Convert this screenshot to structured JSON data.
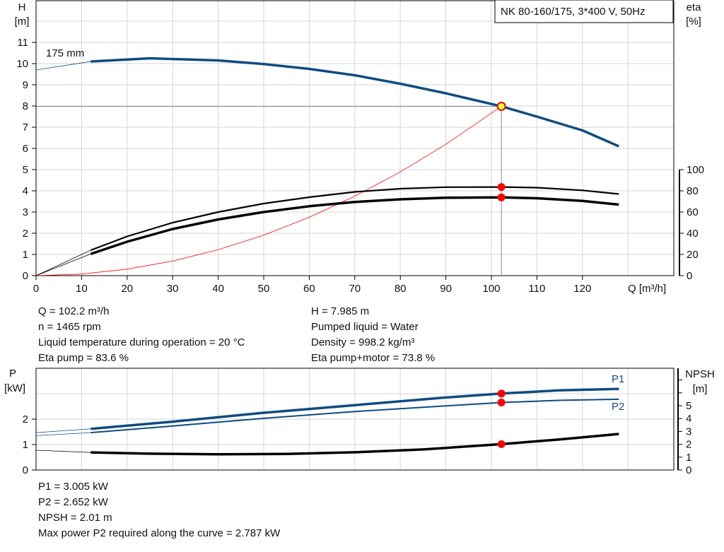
{
  "title": "NK 80-160/175, 3*400 V, 50Hz",
  "chart_data": [
    {
      "type": "line",
      "name": "pump-curve",
      "xlabel": "Q [m³/h]",
      "ylabel_left": "H\n[m]",
      "ylabel_right": "eta\n[%]",
      "xlim": [
        0,
        137.5
      ],
      "ylim_left": [
        0,
        13
      ],
      "ylim_right": [
        0,
        100
      ],
      "xticks": [
        0,
        10,
        20,
        30,
        40,
        50,
        60,
        70,
        80,
        90,
        100,
        110,
        120
      ],
      "yticks_left": [
        0,
        1,
        2,
        3,
        4,
        5,
        6,
        7,
        8,
        9,
        10,
        11
      ],
      "yticks_right": [
        0,
        20,
        40,
        60,
        80,
        100
      ],
      "grid": true,
      "curve_label": "175 mm",
      "series": [
        {
          "axis": "left",
          "color": "#0f4c81",
          "x": [
            0,
            12,
            25,
            40,
            50,
            60,
            70,
            80,
            90,
            102.2,
            110,
            120,
            128
          ],
          "y": [
            9.7,
            10.1,
            10.25,
            10.15,
            9.98,
            9.75,
            9.45,
            9.05,
            8.6,
            7.985,
            7.5,
            6.85,
            6.1
          ]
        },
        {
          "axis": "right",
          "color": "#000000",
          "x": [
            0,
            12,
            20,
            30,
            40,
            50,
            60,
            70,
            80,
            90,
            102.2,
            110,
            120,
            128
          ],
          "y": [
            0,
            24,
            37,
            50,
            60,
            68,
            74,
            79,
            82,
            83.5,
            83.6,
            83,
            80.5,
            77
          ]
        },
        {
          "axis": "right",
          "color": "#000000",
          "x": [
            0,
            12,
            20,
            30,
            40,
            50,
            60,
            70,
            80,
            90,
            102.2,
            110,
            120,
            128
          ],
          "y": [
            0,
            20.5,
            32,
            44,
            53,
            60,
            65.5,
            69.5,
            72,
            73.5,
            73.8,
            73,
            70.5,
            67
          ]
        },
        {
          "axis": "left",
          "color": "#ff0000",
          "type": "system-curve",
          "x": [
            0,
            10,
            20,
            30,
            40,
            50,
            60,
            70,
            80,
            90,
            102.2
          ],
          "y": [
            0,
            0.076,
            0.306,
            0.688,
            1.223,
            1.911,
            2.752,
            3.746,
            4.893,
            6.192,
            7.985
          ]
        }
      ],
      "duty_point": {
        "Q": 102.2,
        "H": 7.985,
        "eta_pump": 83.6,
        "eta_total": 73.8
      }
    },
    {
      "type": "line",
      "name": "power-npsh",
      "ylabel_left": "P\n[kW]",
      "ylabel_right": "NPSH\n[m]",
      "xlim": [
        0,
        137.5
      ],
      "ylim_left": [
        0,
        4
      ],
      "ylim_right": [
        0,
        7.9
      ],
      "yticks_left": [
        0,
        1,
        2
      ],
      "yticks_right": [
        0,
        1,
        2,
        3,
        4,
        5
      ],
      "series": [
        {
          "name": "P1",
          "axis": "left",
          "color": "#0f4c81",
          "x": [
            0,
            12,
            30,
            50,
            70,
            90,
            102.2,
            115,
            128
          ],
          "y": [
            1.47,
            1.62,
            1.9,
            2.25,
            2.55,
            2.85,
            3.005,
            3.13,
            3.19
          ]
        },
        {
          "name": "P2",
          "axis": "left",
          "color": "#0f4c81",
          "x": [
            0,
            12,
            30,
            50,
            70,
            90,
            102.2,
            115,
            128
          ],
          "y": [
            1.35,
            1.47,
            1.73,
            2.03,
            2.3,
            2.52,
            2.652,
            2.74,
            2.78
          ]
        },
        {
          "axis": "right",
          "color": "#000000",
          "x": [
            0,
            12,
            25,
            40,
            55,
            70,
            85,
            102.2,
            115,
            128
          ],
          "y": [
            1.54,
            1.37,
            1.27,
            1.22,
            1.25,
            1.38,
            1.6,
            2.01,
            2.38,
            2.8
          ]
        }
      ],
      "duty_point": {
        "Q": 102.2,
        "P1": 3.005,
        "P2": 2.652,
        "NPSH": 2.01
      }
    }
  ],
  "info1": {
    "left": [
      "Q = 102.2 m³/h",
      "n = 1465 rpm",
      "Liquid temperature during operation = 20 °C",
      "Eta pump = 83.6 %"
    ],
    "right": [
      "H = 7.985 m",
      "Pumped liquid = Water",
      "Density = 998.2 kg/m³",
      "Eta pump+motor = 73.8 %"
    ]
  },
  "info2": [
    "P1 = 3.005 kW",
    "P2 = 2.652 kW",
    "NPSH = 2.01 m",
    "Max power P2 required along the curve = 2.787 kW"
  ]
}
